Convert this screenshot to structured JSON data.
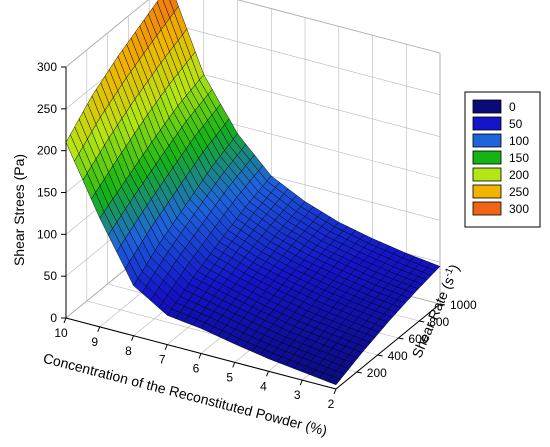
{
  "chart_data": {
    "type": "surface3d",
    "title": "",
    "zlabel": "Shear Strees (Pa)",
    "xlabel": "Concentration of the Reconstituted Powder (%)",
    "ylabel_main": "Shear Rate (s",
    "ylabel_sup": "-1",
    "ylabel_close": ")",
    "xlim": [
      2,
      10
    ],
    "ylim": [
      0,
      1000
    ],
    "zlim": [
      0,
      300
    ],
    "x_ticks": [
      2,
      3,
      4,
      5,
      6,
      7,
      8,
      9,
      10
    ],
    "y_ticks": [
      200,
      400,
      600,
      800,
      1000
    ],
    "z_ticks": [
      0,
      50,
      100,
      150,
      200,
      250,
      300
    ],
    "x_tick_labels": [
      "2",
      "3",
      "4",
      "5",
      "6",
      "7",
      "8",
      "9",
      "10"
    ],
    "y_tick_labels": [
      "200",
      "400",
      "600",
      "800",
      "1000"
    ],
    "z_tick_labels": [
      "0",
      "50",
      "100",
      "150",
      "200",
      "250",
      "300"
    ],
    "legend": {
      "placement": "right",
      "entries": [
        {
          "label": "0",
          "color": "#0a0a78"
        },
        {
          "label": "50",
          "color": "#1414c8"
        },
        {
          "label": "100",
          "color": "#1e64dc"
        },
        {
          "label": "150",
          "color": "#14b414"
        },
        {
          "label": "200",
          "color": "#b4e614"
        },
        {
          "label": "250",
          "color": "#f0b400"
        },
        {
          "label": "300",
          "color": "#f06414"
        }
      ]
    },
    "series": [
      {
        "concentration": 10,
        "shear_rate": [
          0,
          250,
          500,
          750,
          1000
        ],
        "shear_stress": [
          210,
          240,
          262,
          280,
          298
        ]
      },
      {
        "concentration": 9,
        "shear_rate": [
          0,
          250,
          500,
          750,
          1000
        ],
        "shear_stress": [
          130,
          150,
          170,
          188,
          200
        ]
      },
      {
        "concentration": 8,
        "shear_rate": [
          0,
          250,
          500,
          750,
          1000
        ],
        "shear_stress": [
          60,
          85,
          105,
          125,
          140
        ]
      },
      {
        "concentration": 7,
        "shear_rate": [
          0,
          250,
          500,
          750,
          1000
        ],
        "shear_stress": [
          35,
          55,
          72,
          88,
          100
        ]
      },
      {
        "concentration": 6,
        "shear_rate": [
          0,
          250,
          500,
          750,
          1000
        ],
        "shear_stress": [
          30,
          45,
          58,
          70,
          80
        ]
      },
      {
        "concentration": 5,
        "shear_rate": [
          0,
          250,
          500,
          750,
          1000
        ],
        "shear_stress": [
          22,
          36,
          48,
          58,
          66
        ]
      },
      {
        "concentration": 4,
        "shear_rate": [
          0,
          250,
          500,
          750,
          1000
        ],
        "shear_stress": [
          15,
          28,
          40,
          50,
          57
        ]
      },
      {
        "concentration": 3,
        "shear_rate": [
          0,
          250,
          500,
          750,
          1000
        ],
        "shear_stress": [
          10,
          23,
          34,
          43,
          50
        ]
      },
      {
        "concentration": 2,
        "shear_rate": [
          0,
          250,
          500,
          750,
          1000
        ],
        "shear_stress": [
          5,
          18,
          29,
          38,
          45
        ]
      }
    ]
  }
}
